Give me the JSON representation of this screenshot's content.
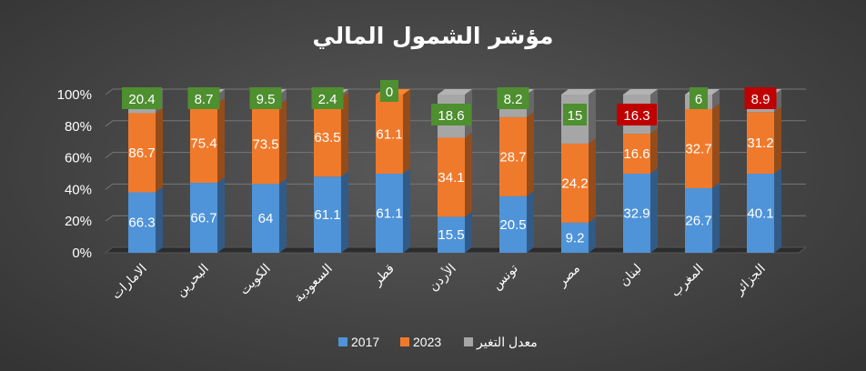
{
  "chart_data": {
    "type": "bar",
    "stacked": "percent",
    "title": "مؤشر الشمول المالي",
    "categories": [
      "الامارات",
      "البحرين",
      "الكويت",
      "السعودية",
      "قطر",
      "الأردن",
      "تونس",
      "مصر",
      "لبنان",
      "المغرب",
      "الجزائر"
    ],
    "series": [
      {
        "name": "2017",
        "color": "#4f93d8",
        "values": [
          66.3,
          66.7,
          64,
          61.1,
          61.1,
          15.5,
          20.5,
          9.2,
          32.9,
          26.7,
          40.1
        ]
      },
      {
        "name": "2023",
        "color": "#f07a2c",
        "values": [
          86.7,
          75.4,
          73.5,
          63.5,
          61.1,
          34.1,
          28.7,
          24.2,
          16.6,
          32.7,
          31.2
        ]
      },
      {
        "name": "معدل التغير",
        "color": "#a6a6a6",
        "values": [
          20.4,
          8.7,
          9.5,
          2.4,
          0,
          18.6,
          8.2,
          15,
          16.3,
          6,
          8.9
        ],
        "label_badge_colors": [
          "#4e8f2f",
          "#4e8f2f",
          "#4e8f2f",
          "#4e8f2f",
          "#4e8f2f",
          "#4e8f2f",
          "#4e8f2f",
          "#4e8f2f",
          "#c00000",
          "#4e8f2f",
          "#c00000"
        ]
      }
    ],
    "yticks": [
      "0%",
      "20%",
      "40%",
      "60%",
      "80%",
      "100%"
    ],
    "ylim": [
      0,
      100
    ],
    "grid": true,
    "legend": "bottom"
  }
}
